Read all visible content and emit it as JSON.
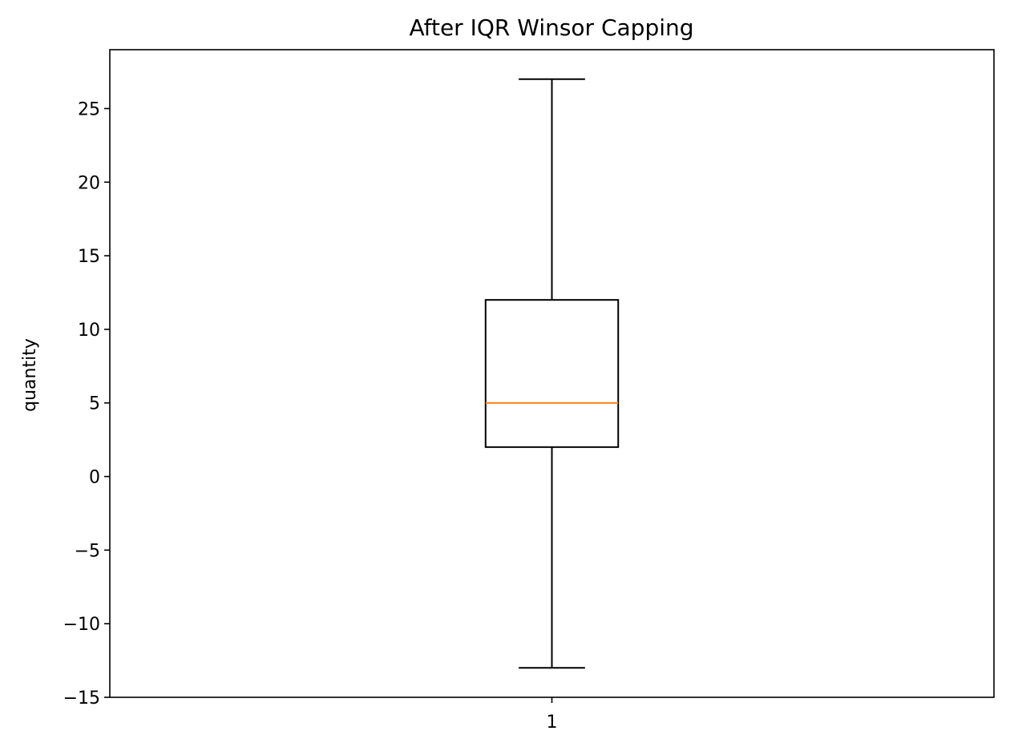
{
  "chart_data": {
    "type": "box",
    "title": "After IQR Winsor Capping",
    "xlabel": "",
    "ylabel": "quantity",
    "categories": [
      "1"
    ],
    "boxes": [
      {
        "category": "1",
        "whisker_low": -13,
        "q1": 2,
        "median": 5,
        "q3": 12,
        "whisker_high": 27
      }
    ],
    "ylim": [
      -15,
      29
    ],
    "yticks": [
      -15,
      -10,
      -5,
      0,
      5,
      10,
      15,
      20,
      25
    ],
    "ytick_labels": [
      "−15",
      "−10",
      "−5",
      "0",
      "5",
      "10",
      "15",
      "20",
      "25"
    ],
    "grid": false,
    "colors": {
      "box": "#000000",
      "median": "#ff7f0e",
      "whisker": "#000000"
    }
  }
}
